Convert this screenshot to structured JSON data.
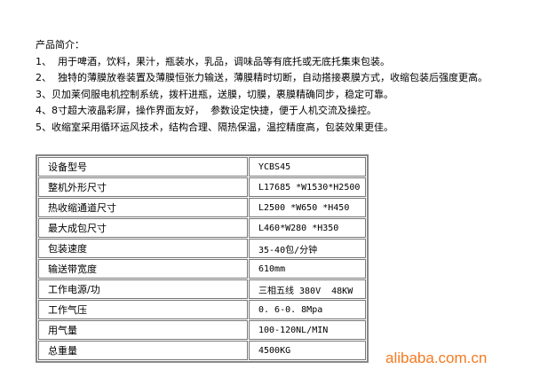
{
  "intro": {
    "title": "产品简介：",
    "lines": [
      "1、  用于啤酒，饮料，果汁，瓶装水，乳品，调味品等有底托或无底托集束包装。",
      "2、  独特的薄膜放卷装置及薄膜恒张力输送，薄膜精时切断，自动搭接裹膜方式，收缩包装后强度更高。",
      "3、贝加莱伺服电机控制系统，拨杆进瓶，送膜，切膜，裹膜精确同步，稳定可靠。",
      "4、8寸超大液晶彩屏，操作界面友好，  参数设定快捷，便于人机交流及操控。",
      "5、收缩室采用循环运风技术，结构合理、隔热保温，温控精度高，包装效果更佳。"
    ]
  },
  "table": {
    "rows": [
      [
        "设备型号",
        "YCBS45"
      ],
      [
        "整机外形尺寸",
        "L17685 *W1530*H2500"
      ],
      [
        "热收缩通道尺寸",
        "L2500 *W650 *H450"
      ],
      [
        "最大成包尺寸",
        "L460*W280 *H350"
      ],
      [
        "包装速度",
        "35-40包/分钟"
      ],
      [
        "输送带宽度",
        "610mm"
      ],
      [
        "工作电源/功",
        "三相五线 380V  48KW"
      ],
      [
        "工作气压",
        "0. 6-0. 8Mpa"
      ],
      [
        "用气量",
        "100-120NL/MIN"
      ],
      [
        "总重量",
        "4500KG"
      ]
    ]
  },
  "watermark": "alibaba.com.cn"
}
